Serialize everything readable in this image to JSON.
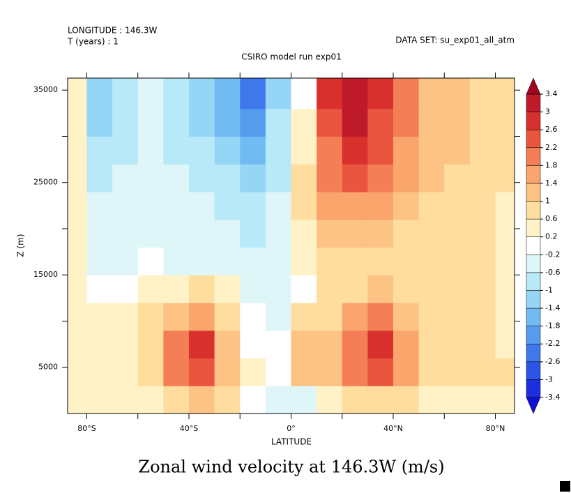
{
  "chart_data": {
    "type": "contour",
    "title": "Zonal wind velocity at 146.3W (m/s)",
    "subtitle": "CSIRO model run exp01",
    "header_left": [
      "LONGITUDE : 146.3W",
      "T (years) : 1"
    ],
    "header_right": "DATA SET: su_exp01_all_atm",
    "x_label": "LATITUDE",
    "y_label": "Z (m)",
    "xlim": [
      -87.5,
      87.5
    ],
    "ylim": [
      0,
      36300
    ],
    "xticks": [
      {
        "value": -80,
        "label": "80°S"
      },
      {
        "value": -40,
        "label": "40°S"
      },
      {
        "value": 0,
        "label": "0°"
      },
      {
        "value": 40,
        "label": "40°N"
      },
      {
        "value": 80,
        "label": "80°N"
      }
    ],
    "xminor_ticks": [
      -60,
      -20,
      20,
      60
    ],
    "yticks": [
      5000,
      15000,
      25000,
      35000
    ],
    "yminor_ticks": [
      10000,
      20000,
      30000
    ],
    "x": [
      -85,
      -75,
      -65,
      -55,
      -45,
      -35,
      -25,
      -15,
      -5,
      5,
      15,
      25,
      35,
      45,
      55,
      65,
      75,
      85
    ],
    "y": [
      1500,
      4500,
      7500,
      10500,
      13500,
      16500,
      19500,
      22500,
      25500,
      28500,
      31500,
      34500
    ],
    "z": [
      [
        0.3,
        0.3,
        0.3,
        0.4,
        0.8,
        1.0,
        0.6,
        0.1,
        -0.3,
        -0.3,
        0.4,
        0.8,
        0.9,
        0.6,
        0.5,
        0.4,
        0.4,
        0.3
      ],
      [
        0.4,
        0.5,
        0.5,
        0.7,
        1.8,
        2.4,
        1.0,
        0.2,
        -0.1,
        1.0,
        1.1,
        1.8,
        2.3,
        1.4,
        0.8,
        0.8,
        0.8,
        0.6
      ],
      [
        0.4,
        0.5,
        0.5,
        0.8,
        2.0,
        2.6,
        1.2,
        0.0,
        -0.2,
        1.0,
        1.1,
        2.0,
        2.6,
        1.4,
        0.8,
        0.8,
        0.8,
        0.5
      ],
      [
        0.4,
        0.3,
        0.3,
        0.6,
        1.2,
        1.6,
        0.6,
        -0.2,
        -0.4,
        0.6,
        0.8,
        1.6,
        1.8,
        1.0,
        0.8,
        0.9,
        0.8,
        0.5
      ],
      [
        0.3,
        0.1,
        0.1,
        0.3,
        0.5,
        0.6,
        0.2,
        -0.4,
        -0.5,
        0.1,
        0.6,
        0.9,
        1.0,
        0.6,
        0.8,
        0.9,
        0.7,
        0.5
      ],
      [
        0.2,
        -0.3,
        -0.3,
        -0.2,
        -0.3,
        -0.4,
        -0.5,
        -0.6,
        -0.5,
        0.2,
        0.7,
        0.8,
        0.8,
        0.6,
        0.8,
        0.9,
        0.7,
        0.5
      ],
      [
        0.2,
        -0.4,
        -0.4,
        -0.3,
        -0.4,
        -0.5,
        -0.6,
        -0.8,
        -0.6,
        0.4,
        1.0,
        1.2,
        1.0,
        0.8,
        0.8,
        0.8,
        0.7,
        0.5
      ],
      [
        0.2,
        -0.6,
        -0.5,
        -0.4,
        -0.4,
        -0.6,
        -0.8,
        -1.0,
        -0.6,
        0.6,
        1.4,
        1.6,
        1.4,
        1.0,
        0.8,
        0.8,
        0.7,
        0.5
      ],
      [
        0.2,
        -0.8,
        -0.6,
        -0.4,
        -0.6,
        -0.8,
        -1.0,
        -1.2,
        -0.7,
        0.6,
        1.8,
        2.2,
        2.0,
        1.4,
        1.0,
        0.9,
        0.8,
        0.6
      ],
      [
        0.2,
        -1.0,
        -0.7,
        -0.5,
        -0.7,
        -1.0,
        -1.4,
        -1.6,
        -0.8,
        0.4,
        2.0,
        2.6,
        2.2,
        1.6,
        1.2,
        1.0,
        0.8,
        0.6
      ],
      [
        0.2,
        -1.2,
        -0.8,
        -0.6,
        -0.8,
        -1.2,
        -1.6,
        -2.0,
        -1.0,
        0.2,
        2.4,
        3.0,
        2.4,
        1.8,
        1.2,
        1.0,
        0.8,
        0.6
      ],
      [
        0.2,
        -1.2,
        -0.8,
        -0.6,
        -0.8,
        -1.2,
        -1.8,
        -2.3,
        -1.2,
        0.0,
        2.6,
        3.3,
        2.6,
        1.8,
        1.2,
        1.0,
        0.8,
        0.6
      ]
    ],
    "levels": [
      -3.4,
      -3,
      -2.6,
      -2.2,
      -1.8,
      -1.4,
      -1,
      -0.6,
      -0.2,
      0.2,
      0.6,
      1,
      1.4,
      1.8,
      2.2,
      2.6,
      3,
      3.4
    ],
    "colors": [
      "#1010d0",
      "#1c2ee0",
      "#2b55e6",
      "#3f78ea",
      "#569cee",
      "#72bbf2",
      "#95d6f6",
      "#b8e9f8",
      "#dff6f8",
      "#ffffff",
      "#fff2c6",
      "#fedd9e",
      "#fcc384",
      "#f9a56c",
      "#f47e56",
      "#ea5540",
      "#d8302c",
      "#bf1a2a",
      "#a0061e"
    ]
  }
}
